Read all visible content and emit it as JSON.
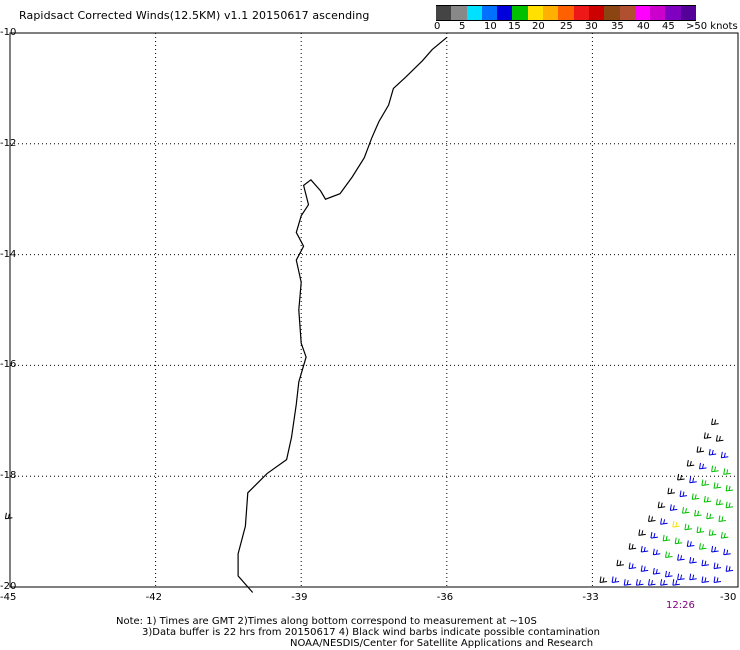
{
  "title": "Rapidsact Corrected Winds(12.5KM) v1.1 20150617 ascending",
  "legend": {
    "labels": [
      "0",
      "5",
      "10",
      "15",
      "20",
      "25",
      "30",
      "35",
      "40",
      "45",
      ">50 knots"
    ],
    "colors": [
      "#444444",
      "#888888",
      "#00e0ff",
      "#0070ff",
      "#0000dd",
      "#00c000",
      "#ffe000",
      "#ffb000",
      "#ff6000",
      "#ee1818",
      "#cc0000",
      "#8b4513",
      "#b05030",
      "#ff00ff",
      "#cc00cc",
      "#7f00c0",
      "#550099"
    ]
  },
  "axes": {
    "lat_labels": [
      "-10",
      "-12",
      "-14",
      "-16",
      "-18",
      "-20"
    ],
    "lon_labels": [
      "-45",
      "-42",
      "-39",
      "-36",
      "-33",
      "-30"
    ],
    "lat_range": [
      -10,
      -20
    ],
    "lon_range": [
      -45,
      -30
    ],
    "grid": "dotted"
  },
  "time_label": "12:26",
  "notes": {
    "line1": "Note: 1) Times are GMT 2)Times along bottom correspond to measurement at ~10S",
    "line2": "3)Data buffer is 22 hrs from 20150617 4) Black wind barbs indicate possible contamination",
    "line3": "NOAA/NESDIS/Center for Satellite Applications and Research"
  },
  "coastline": [
    [
      -36.0,
      -10.08
    ],
    [
      -36.3,
      -10.3
    ],
    [
      -36.5,
      -10.5
    ],
    [
      -36.85,
      -10.8
    ],
    [
      -37.1,
      -11.0
    ],
    [
      -37.2,
      -11.3
    ],
    [
      -37.4,
      -11.6
    ],
    [
      -37.55,
      -11.9
    ],
    [
      -37.7,
      -12.25
    ],
    [
      -37.95,
      -12.6
    ],
    [
      -38.2,
      -12.9
    ],
    [
      -38.5,
      -13.0
    ],
    [
      -38.6,
      -12.85
    ],
    [
      -38.8,
      -12.65
    ],
    [
      -38.95,
      -12.75
    ],
    [
      -38.85,
      -13.1
    ],
    [
      -39.0,
      -13.3
    ],
    [
      -39.1,
      -13.6
    ],
    [
      -38.95,
      -13.85
    ],
    [
      -39.1,
      -14.1
    ],
    [
      -39.0,
      -14.5
    ],
    [
      -39.05,
      -15.0
    ],
    [
      -39.0,
      -15.6
    ],
    [
      -38.9,
      -15.85
    ],
    [
      -39.05,
      -16.3
    ],
    [
      -39.1,
      -16.7
    ],
    [
      -39.2,
      -17.3
    ],
    [
      -39.3,
      -17.7
    ],
    [
      -39.7,
      -17.95
    ],
    [
      -40.1,
      -18.3
    ],
    [
      -40.15,
      -18.9
    ],
    [
      -40.3,
      -19.4
    ],
    [
      -40.3,
      -19.8
    ],
    [
      -40.0,
      -20.1
    ]
  ],
  "wind_barbs": [
    {
      "lon": -30.4,
      "lat": -17.05,
      "knots": 2
    },
    {
      "lon": -30.55,
      "lat": -17.3,
      "knots": 3
    },
    {
      "lon": -30.3,
      "lat": -17.35,
      "knots": 3
    },
    {
      "lon": -30.7,
      "lat": -17.55,
      "knots": 2
    },
    {
      "lon": -30.45,
      "lat": -17.6,
      "knots": 8
    },
    {
      "lon": -30.2,
      "lat": -17.65,
      "knots": 8
    },
    {
      "lon": -30.9,
      "lat": -17.8,
      "knots": 3
    },
    {
      "lon": -30.65,
      "lat": -17.85,
      "knots": 8
    },
    {
      "lon": -30.4,
      "lat": -17.9,
      "knots": 12
    },
    {
      "lon": -30.15,
      "lat": -17.95,
      "knots": 12
    },
    {
      "lon": -31.1,
      "lat": -18.05,
      "knots": 2
    },
    {
      "lon": -30.85,
      "lat": -18.1,
      "knots": 8
    },
    {
      "lon": -30.6,
      "lat": -18.15,
      "knots": 12
    },
    {
      "lon": -30.35,
      "lat": -18.2,
      "knots": 12
    },
    {
      "lon": -30.1,
      "lat": -18.25,
      "knots": 12
    },
    {
      "lon": -31.3,
      "lat": -18.3,
      "knots": 3
    },
    {
      "lon": -31.05,
      "lat": -18.35,
      "knots": 8
    },
    {
      "lon": -30.8,
      "lat": -18.4,
      "knots": 12
    },
    {
      "lon": -30.55,
      "lat": -18.45,
      "knots": 12
    },
    {
      "lon": -30.3,
      "lat": -18.5,
      "knots": 12
    },
    {
      "lon": -30.1,
      "lat": -18.55,
      "knots": 12
    },
    {
      "lon": -31.5,
      "lat": -18.55,
      "knots": 2
    },
    {
      "lon": -31.25,
      "lat": -18.6,
      "knots": 8
    },
    {
      "lon": -31.0,
      "lat": -18.65,
      "knots": 12
    },
    {
      "lon": -30.75,
      "lat": -18.7,
      "knots": 12
    },
    {
      "lon": -30.5,
      "lat": -18.75,
      "knots": 12
    },
    {
      "lon": -30.25,
      "lat": -18.8,
      "knots": 12
    },
    {
      "lon": -31.7,
      "lat": -18.8,
      "knots": 3
    },
    {
      "lon": -31.45,
      "lat": -18.85,
      "knots": 8
    },
    {
      "lon": -31.2,
      "lat": -18.9,
      "knots": 16
    },
    {
      "lon": -30.95,
      "lat": -18.95,
      "knots": 12
    },
    {
      "lon": -30.7,
      "lat": -19.0,
      "knots": 12
    },
    {
      "lon": -30.45,
      "lat": -19.05,
      "knots": 12
    },
    {
      "lon": -30.2,
      "lat": -19.1,
      "knots": 12
    },
    {
      "lon": -31.9,
      "lat": -19.05,
      "knots": 2
    },
    {
      "lon": -31.65,
      "lat": -19.1,
      "knots": 8
    },
    {
      "lon": -31.4,
      "lat": -19.15,
      "knots": 12
    },
    {
      "lon": -31.15,
      "lat": -19.2,
      "knots": 12
    },
    {
      "lon": -30.9,
      "lat": -19.25,
      "knots": 8
    },
    {
      "lon": -30.65,
      "lat": -19.3,
      "knots": 12
    },
    {
      "lon": -30.4,
      "lat": -19.35,
      "knots": 8
    },
    {
      "lon": -30.15,
      "lat": -19.4,
      "knots": 8
    },
    {
      "lon": -32.1,
      "lat": -19.3,
      "knots": 3
    },
    {
      "lon": -31.85,
      "lat": -19.35,
      "knots": 8
    },
    {
      "lon": -31.6,
      "lat": -19.4,
      "knots": 8
    },
    {
      "lon": -31.35,
      "lat": -19.45,
      "knots": 12
    },
    {
      "lon": -31.1,
      "lat": -19.5,
      "knots": 8
    },
    {
      "lon": -30.85,
      "lat": -19.55,
      "knots": 8
    },
    {
      "lon": -30.6,
      "lat": -19.6,
      "knots": 8
    },
    {
      "lon": -30.35,
      "lat": -19.65,
      "knots": 8
    },
    {
      "lon": -30.1,
      "lat": -19.7,
      "knots": 8
    },
    {
      "lon": -32.35,
      "lat": -19.6,
      "knots": 2
    },
    {
      "lon": -32.1,
      "lat": -19.65,
      "knots": 8
    },
    {
      "lon": -31.85,
      "lat": -19.7,
      "knots": 8
    },
    {
      "lon": -31.6,
      "lat": -19.75,
      "knots": 8
    },
    {
      "lon": -31.35,
      "lat": -19.8,
      "knots": 8
    },
    {
      "lon": -31.1,
      "lat": -19.85,
      "knots": 8
    },
    {
      "lon": -30.85,
      "lat": -19.85,
      "knots": 8
    },
    {
      "lon": -30.6,
      "lat": -19.9,
      "knots": 8
    },
    {
      "lon": -30.35,
      "lat": -19.9,
      "knots": 8
    },
    {
      "lon": -32.7,
      "lat": -19.9,
      "knots": 3
    },
    {
      "lon": -32.45,
      "lat": -19.9,
      "knots": 8
    },
    {
      "lon": -32.2,
      "lat": -19.95,
      "knots": 8
    },
    {
      "lon": -31.95,
      "lat": -19.95,
      "knots": 8
    },
    {
      "lon": -31.7,
      "lat": -19.95,
      "knots": 8
    },
    {
      "lon": -31.45,
      "lat": -19.95,
      "knots": 8
    },
    {
      "lon": -31.2,
      "lat": -19.95,
      "knots": 8
    },
    {
      "lon": -44.95,
      "lat": -18.75,
      "knots": 2
    }
  ]
}
